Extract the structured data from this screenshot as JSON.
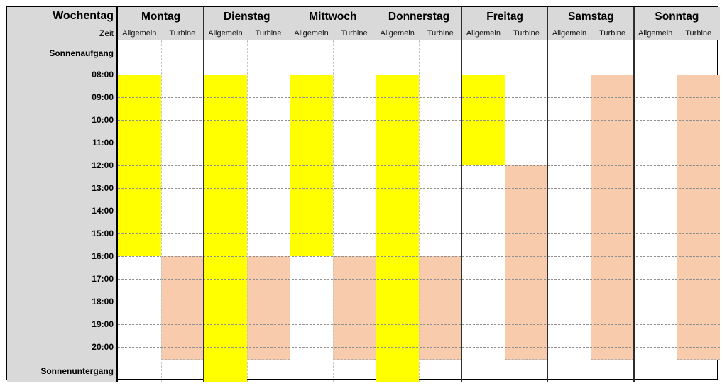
{
  "header": {
    "corner_title": "Wochentag",
    "corner_subtitle": "Zeit"
  },
  "chart_data": {
    "type": "table",
    "days": [
      "Montag",
      "Dienstag",
      "Mittwoch",
      "Donnerstag",
      "Freitag",
      "Samstag",
      "Sonntag"
    ],
    "sub_columns": [
      "Allgemein",
      "Turbine"
    ],
    "time_rows": [
      "Sonnenaufgang",
      "08:00",
      "09:00",
      "10:00",
      "11:00",
      "12:00",
      "13:00",
      "14:00",
      "15:00",
      "16:00",
      "17:00",
      "18:00",
      "19:00",
      "20:00",
      "Sonnenuntergang"
    ],
    "blocks": [
      {
        "day": "Montag",
        "column": "Allgemein",
        "start": "08:00",
        "end": "16:00",
        "color": "#FFFF00"
      },
      {
        "day": "Montag",
        "column": "Turbine",
        "start": "16:00",
        "end": "20:30",
        "color": "#F8CBAD"
      },
      {
        "day": "Dienstag",
        "column": "Allgemein",
        "start": "08:00",
        "end": "Sonnenuntergang",
        "color": "#FFFF00"
      },
      {
        "day": "Dienstag",
        "column": "Turbine",
        "start": "16:00",
        "end": "20:30",
        "color": "#F8CBAD"
      },
      {
        "day": "Mittwoch",
        "column": "Allgemein",
        "start": "08:00",
        "end": "16:00",
        "color": "#FFFF00"
      },
      {
        "day": "Mittwoch",
        "column": "Turbine",
        "start": "16:00",
        "end": "20:30",
        "color": "#F8CBAD"
      },
      {
        "day": "Donnerstag",
        "column": "Allgemein",
        "start": "08:00",
        "end": "Sonnenuntergang",
        "color": "#FFFF00"
      },
      {
        "day": "Donnerstag",
        "column": "Turbine",
        "start": "16:00",
        "end": "20:30",
        "color": "#F8CBAD"
      },
      {
        "day": "Freitag",
        "column": "Allgemein",
        "start": "08:00",
        "end": "12:00",
        "color": "#FFFF00"
      },
      {
        "day": "Freitag",
        "column": "Turbine",
        "start": "12:00",
        "end": "20:30",
        "color": "#F8CBAD"
      },
      {
        "day": "Samstag",
        "column": "Turbine",
        "start": "08:00",
        "end": "20:30",
        "color": "#F8CBAD"
      },
      {
        "day": "Sonntag",
        "column": "Turbine",
        "start": "08:00",
        "end": "20:30",
        "color": "#F8CBAD"
      }
    ],
    "colors": {
      "allgemein_active": "#FFFF00",
      "turbine_active": "#F8CBAD",
      "header_bg": "#D9D9D9",
      "label_column_bg": "#D9D9D9",
      "grid_dashed": "#8F8F8F",
      "day_separator": "#2E2E2E",
      "outer_border": "#000000"
    },
    "layout": {
      "gridlines": "dashed horizontal hourly lines, dashed vertical sub-column dividers",
      "legend": "none"
    }
  }
}
